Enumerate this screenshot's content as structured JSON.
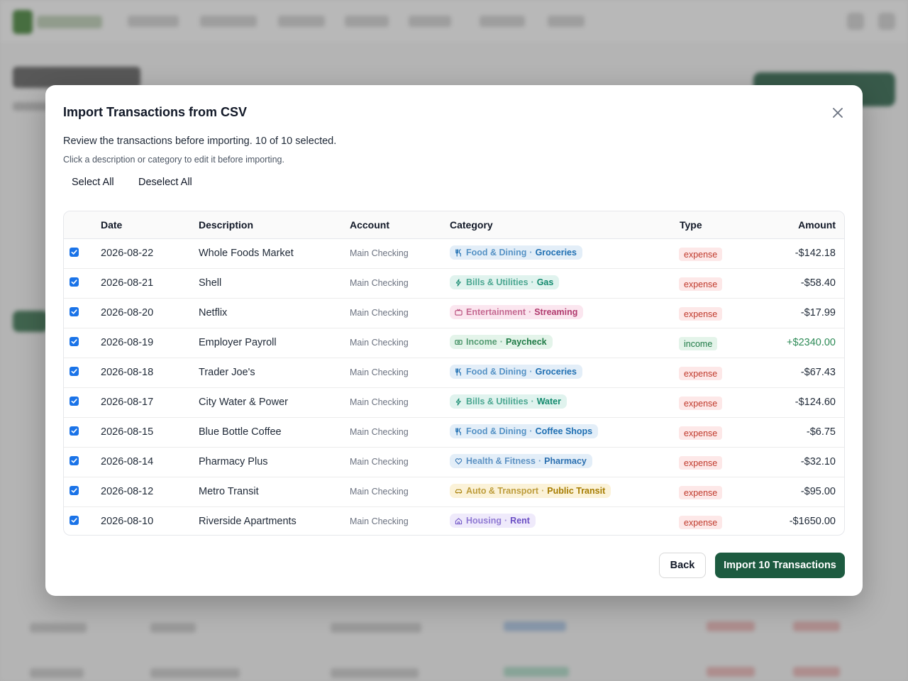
{
  "modal": {
    "title": "Import Transactions from CSV",
    "review_text": "Review the transactions before importing. 10 of 10 selected.",
    "hint_text": "Click a description or category to edit it before importing.",
    "select_all_label": "Select All",
    "deselect_all_label": "Deselect All",
    "back_label": "Back",
    "import_label": "Import 10 Transactions"
  },
  "table": {
    "headers": {
      "date": "Date",
      "description": "Description",
      "account": "Account",
      "category": "Category",
      "type": "Type",
      "amount": "Amount"
    },
    "rows": [
      {
        "checked": true,
        "date": "2026-08-22",
        "description": "Whole Foods Market",
        "account": "Main Checking",
        "category_parent": "Food & Dining",
        "category_child": "Groceries",
        "category_icon": "utensils-icon",
        "category_color": "#1f6fb2",
        "category_bg": "#e3eef8",
        "type": "expense",
        "amount": "-$142.18"
      },
      {
        "checked": true,
        "date": "2026-08-21",
        "description": "Shell",
        "account": "Main Checking",
        "category_parent": "Bills & Utilities",
        "category_child": "Gas",
        "category_icon": "bolt-icon",
        "category_color": "#138a6e",
        "category_bg": "#e0f3ee",
        "type": "expense",
        "amount": "-$58.40"
      },
      {
        "checked": true,
        "date": "2026-08-20",
        "description": "Netflix",
        "account": "Main Checking",
        "category_parent": "Entertainment",
        "category_child": "Streaming",
        "category_icon": "tv-icon",
        "category_color": "#b03a6e",
        "category_bg": "#fbe6ef",
        "type": "expense",
        "amount": "-$17.99"
      },
      {
        "checked": true,
        "date": "2026-08-19",
        "description": "Employer Payroll",
        "account": "Main Checking",
        "category_parent": "Income",
        "category_child": "Paycheck",
        "category_icon": "banknote-icon",
        "category_color": "#1e7a45",
        "category_bg": "#e4f4ea",
        "type": "income",
        "amount": "+$2340.00"
      },
      {
        "checked": true,
        "date": "2026-08-18",
        "description": "Trader Joe's",
        "account": "Main Checking",
        "category_parent": "Food & Dining",
        "category_child": "Groceries",
        "category_icon": "utensils-icon",
        "category_color": "#1f6fb2",
        "category_bg": "#e3eef8",
        "type": "expense",
        "amount": "-$67.43"
      },
      {
        "checked": true,
        "date": "2026-08-17",
        "description": "City Water & Power",
        "account": "Main Checking",
        "category_parent": "Bills & Utilities",
        "category_child": "Water",
        "category_icon": "bolt-icon",
        "category_color": "#138a6e",
        "category_bg": "#e0f3ee",
        "type": "expense",
        "amount": "-$124.60"
      },
      {
        "checked": true,
        "date": "2026-08-15",
        "description": "Blue Bottle Coffee",
        "account": "Main Checking",
        "category_parent": "Food & Dining",
        "category_child": "Coffee Shops",
        "category_icon": "utensils-icon",
        "category_color": "#1f6fb2",
        "category_bg": "#e3eef8",
        "type": "expense",
        "amount": "-$6.75"
      },
      {
        "checked": true,
        "date": "2026-08-14",
        "description": "Pharmacy Plus",
        "account": "Main Checking",
        "category_parent": "Health & Fitness",
        "category_child": "Pharmacy",
        "category_icon": "heart-icon",
        "category_color": "#2a6fb0",
        "category_bg": "#e3eef8",
        "type": "expense",
        "amount": "-$32.10"
      },
      {
        "checked": true,
        "date": "2026-08-12",
        "description": "Metro Transit",
        "account": "Main Checking",
        "category_parent": "Auto & Transport",
        "category_child": "Public Transit",
        "category_icon": "car-icon",
        "category_color": "#a67c00",
        "category_bg": "#fbf2d8",
        "type": "expense",
        "amount": "-$95.00"
      },
      {
        "checked": true,
        "date": "2026-08-10",
        "description": "Riverside Apartments",
        "account": "Main Checking",
        "category_parent": "Housing",
        "category_child": "Rent",
        "category_icon": "home-icon",
        "category_color": "#6b4fc4",
        "category_bg": "#efeafb",
        "type": "expense",
        "amount": "-$1650.00"
      }
    ]
  },
  "colors": {
    "primary_button": "#1d5b40",
    "checkbox": "#1a73e8",
    "expense_text": "#c0392b",
    "income_text": "#1e7a45",
    "amount_income": "#2e8b57"
  }
}
